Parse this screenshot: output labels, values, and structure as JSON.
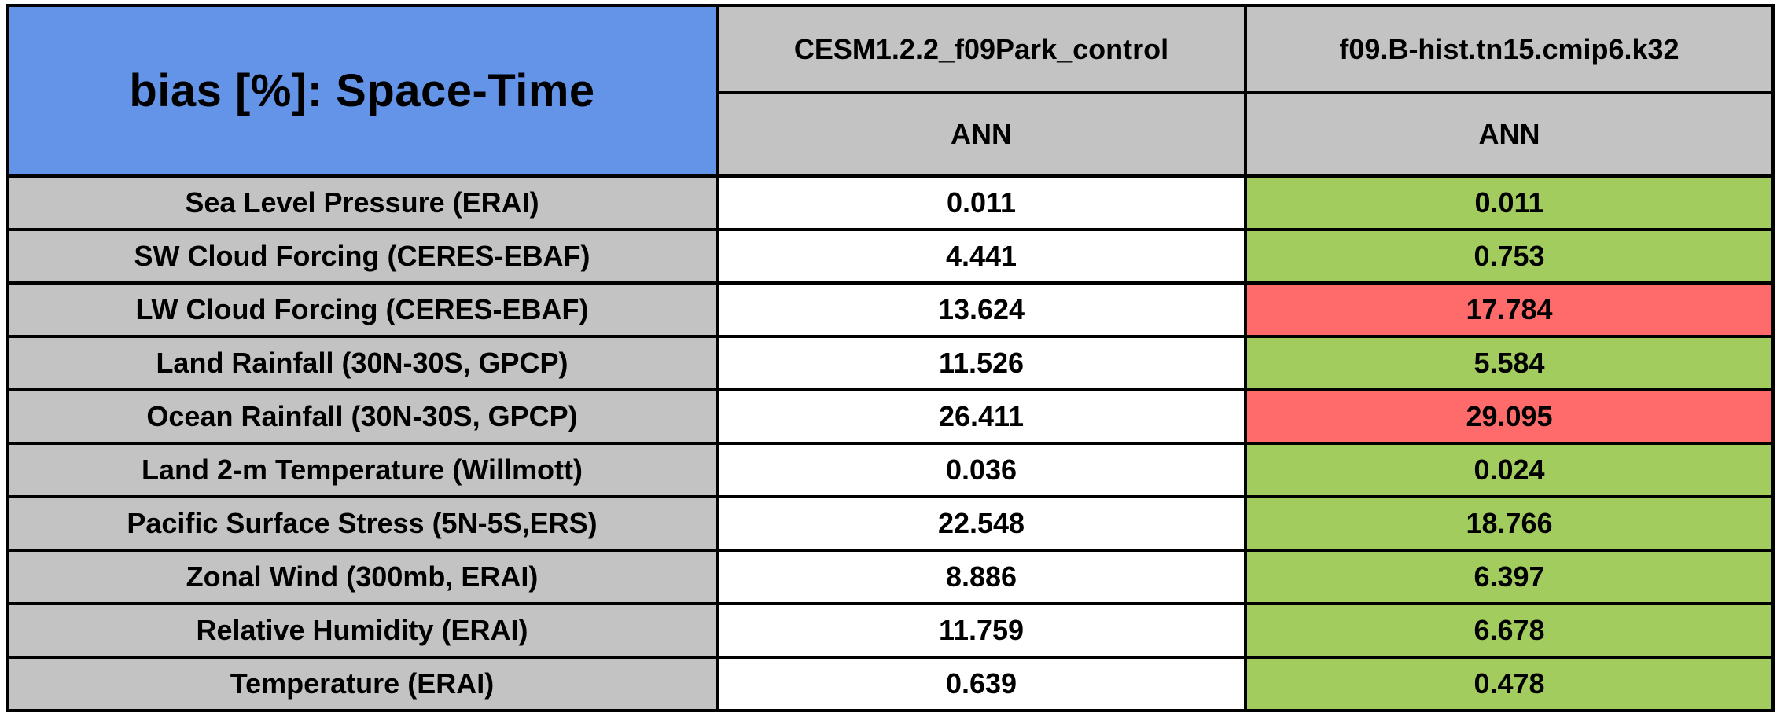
{
  "header": {
    "title": "bias [%]: Space-Time",
    "columns": [
      {
        "model": "CESM1.2.2_f09Park_control",
        "season": "ANN"
      },
      {
        "model": "f09.B-hist.tn15.cmip6.k32",
        "season": "ANN"
      }
    ]
  },
  "rows": [
    {
      "label": "Sea Level Pressure (ERAI)",
      "control": "0.011",
      "test": "0.011",
      "test_status": "better"
    },
    {
      "label": "SW Cloud Forcing (CERES-EBAF)",
      "control": "4.441",
      "test": "0.753",
      "test_status": "better"
    },
    {
      "label": "LW Cloud Forcing (CERES-EBAF)",
      "control": "13.624",
      "test": "17.784",
      "test_status": "worse"
    },
    {
      "label": "Land Rainfall (30N-30S, GPCP)",
      "control": "11.526",
      "test": "5.584",
      "test_status": "better"
    },
    {
      "label": "Ocean Rainfall (30N-30S, GPCP)",
      "control": "26.411",
      "test": "29.095",
      "test_status": "worse"
    },
    {
      "label": "Land 2-m Temperature (Willmott)",
      "control": "0.036",
      "test": "0.024",
      "test_status": "better"
    },
    {
      "label": "Pacific Surface Stress (5N-5S,ERS)",
      "control": "22.548",
      "test": "18.766",
      "test_status": "better"
    },
    {
      "label": "Zonal Wind (300mb, ERAI)",
      "control": "8.886",
      "test": "6.397",
      "test_status": "better"
    },
    {
      "label": "Relative Humidity (ERAI)",
      "control": "11.759",
      "test": "6.678",
      "test_status": "better"
    },
    {
      "label": "Temperature (ERAI)",
      "control": "0.639",
      "test": "0.478",
      "test_status": "better"
    }
  ],
  "colors": {
    "title_bg": "#6494E8",
    "header_bg": "#C3C3C3",
    "label_bg": "#C3C3C3",
    "value_bg": "#FFFFFF",
    "better_bg": "#A3CC5E",
    "worse_bg": "#FF6B6B",
    "border": "#000000",
    "text": "#000000"
  },
  "chart_data": {
    "type": "table",
    "title": "bias [%]: Space-Time",
    "categories": [
      "Sea Level Pressure (ERAI)",
      "SW Cloud Forcing (CERES-EBAF)",
      "LW Cloud Forcing (CERES-EBAF)",
      "Land Rainfall (30N-30S, GPCP)",
      "Ocean Rainfall (30N-30S, GPCP)",
      "Land 2-m Temperature (Willmott)",
      "Pacific Surface Stress (5N-5S,ERS)",
      "Zonal Wind (300mb, ERAI)",
      "Relative Humidity (ERAI)",
      "Temperature (ERAI)"
    ],
    "column_headers": [
      "CESM1.2.2_f09Park_control",
      "f09.B-hist.tn15.cmip6.k32"
    ],
    "subcolumn_headers": [
      "ANN",
      "ANN"
    ],
    "series": [
      {
        "name": "CESM1.2.2_f09Park_control",
        "season": "ANN",
        "values": [
          0.011,
          4.441,
          13.624,
          11.526,
          26.411,
          0.036,
          22.548,
          8.886,
          11.759,
          0.639
        ]
      },
      {
        "name": "f09.B-hist.tn15.cmip6.k32",
        "season": "ANN",
        "values": [
          0.011,
          0.753,
          17.784,
          5.584,
          29.095,
          0.024,
          18.766,
          6.397,
          6.678,
          0.478
        ],
        "cell_status": [
          "better",
          "better",
          "worse",
          "better",
          "worse",
          "better",
          "better",
          "better",
          "better",
          "better"
        ],
        "status_colors": {
          "better": "#A3CC5E",
          "worse": "#FF6B6B"
        }
      }
    ],
    "layout": {
      "title_cell_bg": "#6494E8",
      "header_bg": "#C3C3C3",
      "grid": true
    }
  }
}
